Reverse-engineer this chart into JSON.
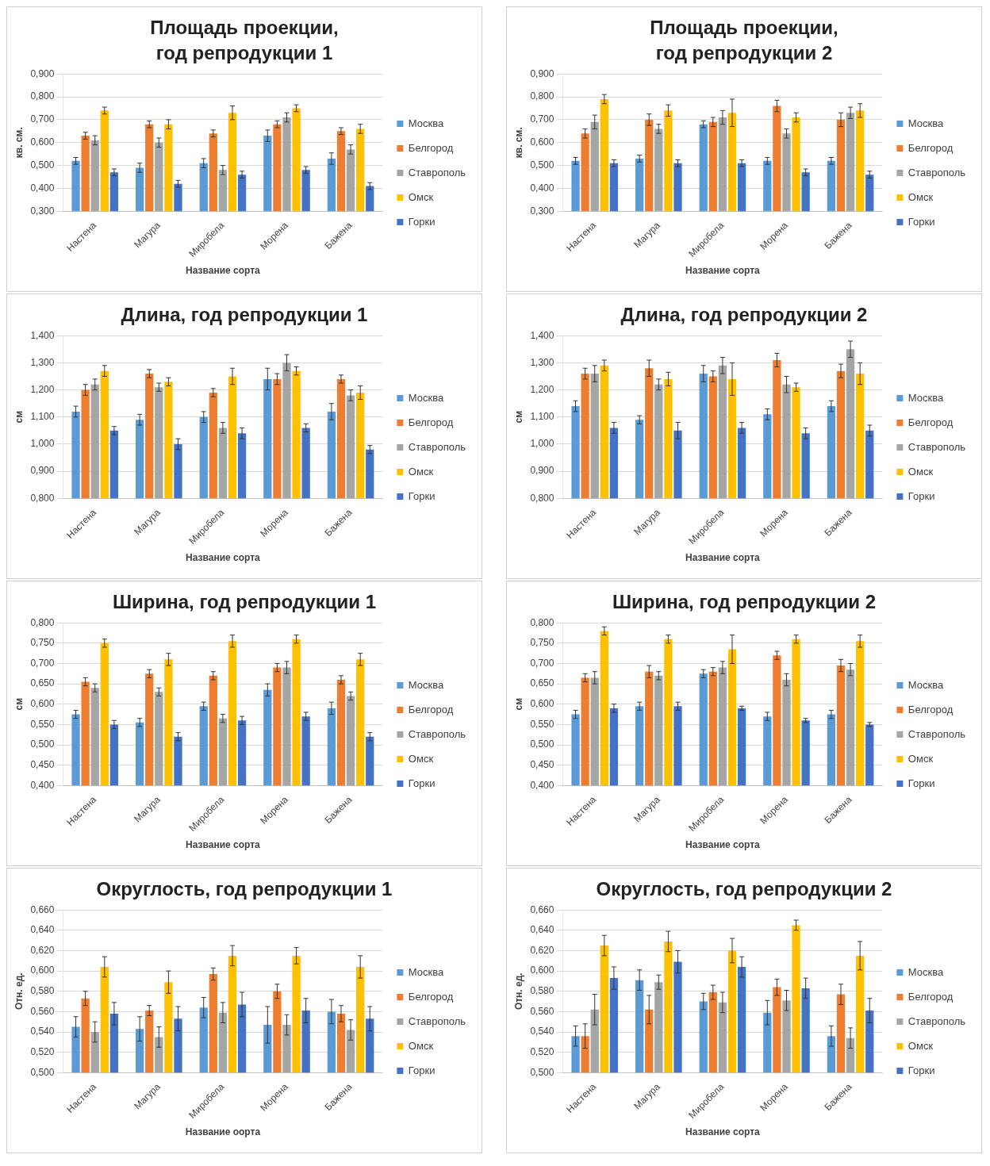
{
  "chart_data": [
    {
      "type": "bar",
      "title": "Площадь проекции,\nгод репродукции 1",
      "xlabel": "Название сорта",
      "ylabel": "кв. см.",
      "categories": [
        "Настена",
        "Магура",
        "Миробела",
        "Морена",
        "Бажена"
      ],
      "ylim": [
        0.3,
        0.9
      ],
      "yticks": [
        {
          "value": 0.3,
          "label": "0,300"
        },
        {
          "value": 0.4,
          "label": "0,400"
        },
        {
          "value": 0.5,
          "label": "0,500"
        },
        {
          "value": 0.6,
          "label": "0,600"
        },
        {
          "value": 0.7,
          "label": "0,700"
        },
        {
          "value": 0.8,
          "label": "0,800"
        },
        {
          "value": 0.9,
          "label": "0,900"
        }
      ],
      "grid": "y",
      "legend": "right",
      "series": [
        {
          "name": "Москва",
          "color": "#5b9bd5",
          "values": [
            0.52,
            0.49,
            0.51,
            0.63,
            0.53
          ],
          "errors": [
            0.015,
            0.02,
            0.02,
            0.025,
            0.025
          ]
        },
        {
          "name": "Белгород",
          "color": "#ed7d31",
          "values": [
            0.63,
            0.68,
            0.64,
            0.68,
            0.65
          ],
          "errors": [
            0.015,
            0.015,
            0.015,
            0.015,
            0.015
          ]
        },
        {
          "name": "Ставрополь",
          "color": "#a5a5a5",
          "values": [
            0.61,
            0.6,
            0.48,
            0.71,
            0.57
          ],
          "errors": [
            0.02,
            0.02,
            0.02,
            0.02,
            0.02
          ]
        },
        {
          "name": "Омск",
          "color": "#ffc000",
          "values": [
            0.74,
            0.68,
            0.73,
            0.75,
            0.66
          ],
          "errors": [
            0.015,
            0.02,
            0.03,
            0.015,
            0.02
          ]
        },
        {
          "name": "Горки",
          "color": "#4472c4",
          "values": [
            0.47,
            0.42,
            0.46,
            0.48,
            0.41
          ],
          "errors": [
            0.015,
            0.015,
            0.015,
            0.015,
            0.015
          ]
        }
      ]
    },
    {
      "type": "bar",
      "title": "Площадь проекции,\nгод репродукции 2",
      "xlabel": "Название сорта",
      "ylabel": "кв. см.",
      "categories": [
        "Настена",
        "Магура",
        "Миробела",
        "Морена",
        "Бажена"
      ],
      "ylim": [
        0.3,
        0.9
      ],
      "yticks": [
        {
          "value": 0.3,
          "label": "0,300"
        },
        {
          "value": 0.4,
          "label": "0,400"
        },
        {
          "value": 0.5,
          "label": "0,500"
        },
        {
          "value": 0.6,
          "label": "0,600"
        },
        {
          "value": 0.7,
          "label": "0,700"
        },
        {
          "value": 0.8,
          "label": "0,800"
        },
        {
          "value": 0.9,
          "label": "0,900"
        }
      ],
      "grid": "y",
      "legend": "right",
      "series": [
        {
          "name": "Москва",
          "color": "#5b9bd5",
          "values": [
            0.52,
            0.53,
            0.68,
            0.52,
            0.52
          ],
          "errors": [
            0.015,
            0.015,
            0.015,
            0.015,
            0.015
          ]
        },
        {
          "name": "Белгород",
          "color": "#ed7d31",
          "values": [
            0.64,
            0.7,
            0.69,
            0.76,
            0.7
          ],
          "errors": [
            0.02,
            0.025,
            0.02,
            0.025,
            0.03
          ]
        },
        {
          "name": "Ставрополь",
          "color": "#a5a5a5",
          "values": [
            0.69,
            0.66,
            0.71,
            0.64,
            0.73
          ],
          "errors": [
            0.03,
            0.02,
            0.03,
            0.02,
            0.025
          ]
        },
        {
          "name": "Омск",
          "color": "#ffc000",
          "values": [
            0.79,
            0.74,
            0.73,
            0.71,
            0.74
          ],
          "errors": [
            0.02,
            0.025,
            0.06,
            0.02,
            0.03
          ]
        },
        {
          "name": "Горки",
          "color": "#4472c4",
          "values": [
            0.51,
            0.51,
            0.51,
            0.47,
            0.46
          ],
          "errors": [
            0.015,
            0.015,
            0.015,
            0.015,
            0.015
          ]
        }
      ]
    },
    {
      "type": "bar",
      "title": "Длина, год репродукции 1",
      "xlabel": "Название сорта",
      "ylabel": "см",
      "categories": [
        "Настена",
        "Магура",
        "Миробела",
        "Морена",
        "Бажена"
      ],
      "ylim": [
        0.8,
        1.4
      ],
      "yticks": [
        {
          "value": 0.8,
          "label": "0,800"
        },
        {
          "value": 0.9,
          "label": "0,900"
        },
        {
          "value": 1.0,
          "label": "1,000"
        },
        {
          "value": 1.1,
          "label": "1,100"
        },
        {
          "value": 1.2,
          "label": "1,200"
        },
        {
          "value": 1.3,
          "label": "1,300"
        },
        {
          "value": 1.4,
          "label": "1,400"
        }
      ],
      "grid": "y",
      "legend": "right",
      "series": [
        {
          "name": "Москва",
          "color": "#5b9bd5",
          "values": [
            1.12,
            1.09,
            1.1,
            1.24,
            1.12
          ],
          "errors": [
            0.02,
            0.02,
            0.02,
            0.04,
            0.03
          ]
        },
        {
          "name": "Белгород",
          "color": "#ed7d31",
          "values": [
            1.2,
            1.26,
            1.19,
            1.24,
            1.24
          ],
          "errors": [
            0.02,
            0.015,
            0.015,
            0.02,
            0.015
          ]
        },
        {
          "name": "Ставрополь",
          "color": "#a5a5a5",
          "values": [
            1.22,
            1.21,
            1.06,
            1.3,
            1.18
          ],
          "errors": [
            0.02,
            0.015,
            0.02,
            0.03,
            0.02
          ]
        },
        {
          "name": "Омск",
          "color": "#ffc000",
          "values": [
            1.27,
            1.23,
            1.25,
            1.27,
            1.19
          ],
          "errors": [
            0.02,
            0.015,
            0.03,
            0.015,
            0.025
          ]
        },
        {
          "name": "Горки",
          "color": "#4472c4",
          "values": [
            1.05,
            1.0,
            1.04,
            1.06,
            0.98
          ],
          "errors": [
            0.015,
            0.02,
            0.02,
            0.015,
            0.015
          ]
        }
      ]
    },
    {
      "type": "bar",
      "title": "Длина, год репродукции 2",
      "xlabel": "Название сорта",
      "ylabel": "см",
      "categories": [
        "Настена",
        "Магура",
        "Миробела",
        "Морена",
        "Бажена"
      ],
      "ylim": [
        0.8,
        1.4
      ],
      "yticks": [
        {
          "value": 0.8,
          "label": "0,800"
        },
        {
          "value": 0.9,
          "label": "0,900"
        },
        {
          "value": 1.0,
          "label": "1,000"
        },
        {
          "value": 1.1,
          "label": "1,100"
        },
        {
          "value": 1.2,
          "label": "1,200"
        },
        {
          "value": 1.3,
          "label": "1,300"
        },
        {
          "value": 1.4,
          "label": "1,400"
        }
      ],
      "grid": "y",
      "legend": "right",
      "series": [
        {
          "name": "Москва",
          "color": "#5b9bd5",
          "values": [
            1.14,
            1.09,
            1.26,
            1.11,
            1.14
          ],
          "errors": [
            0.02,
            0.015,
            0.03,
            0.02,
            0.02
          ]
        },
        {
          "name": "Белгород",
          "color": "#ed7d31",
          "values": [
            1.26,
            1.28,
            1.25,
            1.31,
            1.27
          ],
          "errors": [
            0.02,
            0.03,
            0.02,
            0.025,
            0.025
          ]
        },
        {
          "name": "Ставрополь",
          "color": "#a5a5a5",
          "values": [
            1.26,
            1.22,
            1.29,
            1.22,
            1.35
          ],
          "errors": [
            0.03,
            0.02,
            0.03,
            0.03,
            0.03
          ]
        },
        {
          "name": "Омск",
          "color": "#ffc000",
          "values": [
            1.29,
            1.24,
            1.24,
            1.21,
            1.26
          ],
          "errors": [
            0.02,
            0.025,
            0.06,
            0.015,
            0.04
          ]
        },
        {
          "name": "Горки",
          "color": "#4472c4",
          "values": [
            1.06,
            1.05,
            1.06,
            1.04,
            1.05
          ],
          "errors": [
            0.02,
            0.03,
            0.02,
            0.02,
            0.02
          ]
        }
      ]
    },
    {
      "type": "bar",
      "title": "Ширина, год репродукции 1",
      "xlabel": "Название сорта",
      "ylabel": "см",
      "categories": [
        "Настена",
        "Магура",
        "Миробела",
        "Морена",
        "Бажена"
      ],
      "ylim": [
        0.4,
        0.8
      ],
      "yticks": [
        {
          "value": 0.4,
          "label": "0,400"
        },
        {
          "value": 0.45,
          "label": "0,450"
        },
        {
          "value": 0.5,
          "label": "0,500"
        },
        {
          "value": 0.55,
          "label": "0,550"
        },
        {
          "value": 0.6,
          "label": "0,600"
        },
        {
          "value": 0.65,
          "label": "0,650"
        },
        {
          "value": 0.7,
          "label": "0,700"
        },
        {
          "value": 0.75,
          "label": "0,750"
        },
        {
          "value": 0.8,
          "label": "0,800"
        }
      ],
      "grid": "y",
      "legend": "right",
      "series": [
        {
          "name": "Москва",
          "color": "#5b9bd5",
          "values": [
            0.575,
            0.555,
            0.595,
            0.635,
            0.59
          ],
          "errors": [
            0.01,
            0.01,
            0.01,
            0.015,
            0.015
          ]
        },
        {
          "name": "Белгород",
          "color": "#ed7d31",
          "values": [
            0.655,
            0.675,
            0.67,
            0.69,
            0.66
          ],
          "errors": [
            0.01,
            0.01,
            0.01,
            0.01,
            0.01
          ]
        },
        {
          "name": "Ставрополь",
          "color": "#a5a5a5",
          "values": [
            0.64,
            0.63,
            0.565,
            0.69,
            0.62
          ],
          "errors": [
            0.01,
            0.01,
            0.01,
            0.015,
            0.01
          ]
        },
        {
          "name": "Омск",
          "color": "#ffc000",
          "values": [
            0.75,
            0.71,
            0.755,
            0.76,
            0.71
          ],
          "errors": [
            0.01,
            0.015,
            0.015,
            0.01,
            0.015
          ]
        },
        {
          "name": "Горки",
          "color": "#4472c4",
          "values": [
            0.55,
            0.52,
            0.56,
            0.57,
            0.52
          ],
          "errors": [
            0.01,
            0.01,
            0.01,
            0.01,
            0.01
          ]
        }
      ]
    },
    {
      "type": "bar",
      "title": "Ширина, год репродукции 2",
      "xlabel": "Название сорта",
      "ylabel": "см",
      "categories": [
        "Настена",
        "Магура",
        "Миробела",
        "Морена",
        "Бажена"
      ],
      "ylim": [
        0.4,
        0.8
      ],
      "yticks": [
        {
          "value": 0.4,
          "label": "0,400"
        },
        {
          "value": 0.45,
          "label": "0,450"
        },
        {
          "value": 0.5,
          "label": "0,500"
        },
        {
          "value": 0.55,
          "label": "0,550"
        },
        {
          "value": 0.6,
          "label": "0,600"
        },
        {
          "value": 0.65,
          "label": "0,650"
        },
        {
          "value": 0.7,
          "label": "0,700"
        },
        {
          "value": 0.75,
          "label": "0,750"
        },
        {
          "value": 0.8,
          "label": "0,800"
        }
      ],
      "grid": "y",
      "legend": "right",
      "series": [
        {
          "name": "Москва",
          "color": "#5b9bd5",
          "values": [
            0.575,
            0.595,
            0.675,
            0.57,
            0.575
          ],
          "errors": [
            0.01,
            0.01,
            0.01,
            0.01,
            0.01
          ]
        },
        {
          "name": "Белгород",
          "color": "#ed7d31",
          "values": [
            0.665,
            0.68,
            0.68,
            0.72,
            0.695
          ],
          "errors": [
            0.01,
            0.015,
            0.01,
            0.01,
            0.015
          ]
        },
        {
          "name": "Ставрополь",
          "color": "#a5a5a5",
          "values": [
            0.665,
            0.67,
            0.69,
            0.66,
            0.685
          ],
          "errors": [
            0.015,
            0.01,
            0.015,
            0.015,
            0.015
          ]
        },
        {
          "name": "Омск",
          "color": "#ffc000",
          "values": [
            0.78,
            0.76,
            0.735,
            0.76,
            0.755
          ],
          "errors": [
            0.01,
            0.01,
            0.035,
            0.01,
            0.015
          ]
        },
        {
          "name": "Горки",
          "color": "#4472c4",
          "values": [
            0.59,
            0.595,
            0.59,
            0.56,
            0.55
          ],
          "errors": [
            0.01,
            0.01,
            0.005,
            0.005,
            0.005
          ]
        }
      ]
    },
    {
      "type": "bar",
      "title": "Округлость, год репродукции 1",
      "xlabel": "Название оорта",
      "ylabel": "Отн. ед.",
      "categories": [
        "Настена",
        "Магура",
        "Миробела",
        "Морена",
        "Бажена"
      ],
      "ylim": [
        0.5,
        0.66
      ],
      "yticks": [
        {
          "value": 0.5,
          "label": "0,500"
        },
        {
          "value": 0.52,
          "label": "0,520"
        },
        {
          "value": 0.54,
          "label": "0,540"
        },
        {
          "value": 0.56,
          "label": "0,560"
        },
        {
          "value": 0.58,
          "label": "0,580"
        },
        {
          "value": 0.6,
          "label": "0,600"
        },
        {
          "value": 0.62,
          "label": "0,620"
        },
        {
          "value": 0.64,
          "label": "0,640"
        },
        {
          "value": 0.66,
          "label": "0,660"
        }
      ],
      "grid": "y",
      "legend": "right",
      "series": [
        {
          "name": "Москва",
          "color": "#5b9bd5",
          "values": [
            0.545,
            0.543,
            0.564,
            0.547,
            0.56
          ],
          "errors": [
            0.01,
            0.012,
            0.01,
            0.018,
            0.012
          ]
        },
        {
          "name": "Белгород",
          "color": "#ed7d31",
          "values": [
            0.573,
            0.561,
            0.597,
            0.58,
            0.558
          ],
          "errors": [
            0.007,
            0.005,
            0.006,
            0.007,
            0.008
          ]
        },
        {
          "name": "Ставрополь",
          "color": "#a5a5a5",
          "values": [
            0.54,
            0.535,
            0.559,
            0.547,
            0.542
          ],
          "errors": [
            0.01,
            0.01,
            0.01,
            0.01,
            0.01
          ]
        },
        {
          "name": "Омск",
          "color": "#ffc000",
          "values": [
            0.604,
            0.589,
            0.615,
            0.615,
            0.604
          ],
          "errors": [
            0.01,
            0.011,
            0.01,
            0.008,
            0.011
          ]
        },
        {
          "name": "Горки",
          "color": "#4472c4",
          "values": [
            0.558,
            0.553,
            0.567,
            0.561,
            0.553
          ],
          "errors": [
            0.011,
            0.012,
            0.012,
            0.012,
            0.012
          ]
        }
      ]
    },
    {
      "type": "bar",
      "title": "Округлость, год репродукции 2",
      "xlabel": "Название сорта",
      "ylabel": "Отн. ед.",
      "categories": [
        "Настена",
        "Магура",
        "Миробела",
        "Морена",
        "Бажена"
      ],
      "ylim": [
        0.5,
        0.66
      ],
      "yticks": [
        {
          "value": 0.5,
          "label": "0,500"
        },
        {
          "value": 0.52,
          "label": "0,520"
        },
        {
          "value": 0.54,
          "label": "0,540"
        },
        {
          "value": 0.56,
          "label": "0,560"
        },
        {
          "value": 0.58,
          "label": "0,580"
        },
        {
          "value": 0.6,
          "label": "0,600"
        },
        {
          "value": 0.62,
          "label": "0,620"
        },
        {
          "value": 0.64,
          "label": "0,640"
        },
        {
          "value": 0.66,
          "label": "0,660"
        }
      ],
      "grid": "y",
      "legend": "right",
      "series": [
        {
          "name": "Москва",
          "color": "#5b9bd5",
          "values": [
            0.536,
            0.591,
            0.57,
            0.559,
            0.536
          ],
          "errors": [
            0.01,
            0.01,
            0.008,
            0.012,
            0.01
          ]
        },
        {
          "name": "Белгород",
          "color": "#ed7d31",
          "values": [
            0.536,
            0.562,
            0.579,
            0.584,
            0.577
          ],
          "errors": [
            0.012,
            0.014,
            0.007,
            0.008,
            0.01
          ]
        },
        {
          "name": "Ставрополь",
          "color": "#a5a5a5",
          "values": [
            0.562,
            0.589,
            0.569,
            0.571,
            0.534
          ],
          "errors": [
            0.015,
            0.007,
            0.01,
            0.01,
            0.01
          ]
        },
        {
          "name": "Омск",
          "color": "#ffc000",
          "values": [
            0.625,
            0.629,
            0.62,
            0.645,
            0.615
          ],
          "errors": [
            0.01,
            0.01,
            0.012,
            0.005,
            0.014
          ]
        },
        {
          "name": "Горки",
          "color": "#4472c4",
          "values": [
            0.593,
            0.609,
            0.604,
            0.583,
            0.561
          ],
          "errors": [
            0.011,
            0.011,
            0.01,
            0.01,
            0.012
          ]
        }
      ]
    }
  ]
}
